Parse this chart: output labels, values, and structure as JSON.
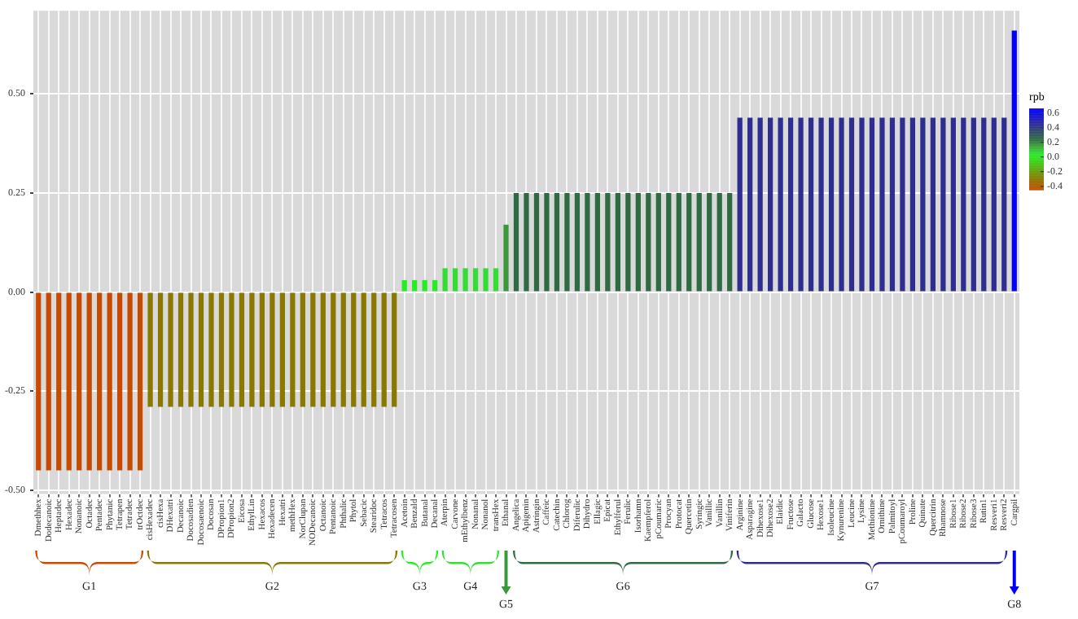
{
  "chart_data": {
    "type": "bar",
    "categories": [
      "Dmethhex",
      "Dodecanoic",
      "Heptadec",
      "Hexadec",
      "Nonanoic",
      "Octadec",
      "Pentadec",
      "Phytanic",
      "Tetrapen",
      "Tetradec",
      "trOctdec",
      "cisHexadec",
      "cisHexa",
      "DHexatri",
      "Decanoic",
      "Docosadien",
      "Docosaenoic",
      "Docosan",
      "DPropion1",
      "DPropion2",
      "Eicosa",
      "EthylLin",
      "Hexacos",
      "Hexadecen",
      "Hexatri",
      "methHex",
      "NorClupan",
      "NODecanoic",
      "Octanoic",
      "Pentanoic",
      "Phthalic",
      "Phytol",
      "Sebacic",
      "Stearidoc",
      "Tetracos",
      "Tetracosen",
      "Acetoin",
      "Benzald",
      "Butanal",
      "Decanal",
      "Aterpin",
      "Carvone",
      "mEthylbenz",
      "Nonanal",
      "Nonanol",
      "transHex",
      "Ethanal",
      "Angelica",
      "Apigenin",
      "Astringin",
      "Caffeic",
      "Catechin",
      "Chlorog",
      "Diferulic",
      "Dihydro",
      "Ellagic",
      "Epicat",
      "Ethylferul",
      "Ferulic",
      "Isorhamn",
      "Kaempferol",
      "pCoumaric",
      "Procyan",
      "Protocat",
      "Quercetin",
      "Syringic",
      "Vanillic",
      "Vanillin",
      "Viniferin",
      "Arginine",
      "Asparagine",
      "Dihexose1",
      "Dihexose2",
      "Elaidic",
      "Fructose",
      "Galacto",
      "Glucose",
      "Hexose1",
      "Isoleucine",
      "Kynurenine",
      "Leucine",
      "Lysine",
      "Methionine",
      "Ornithine",
      "Palmitoyl",
      "pCoumaroyl",
      "Proline",
      "Quinate",
      "Quercitrin",
      "Rhamnose",
      "Ribose1",
      "Ribose2",
      "Ribose3",
      "Rutin1",
      "Resveri1",
      "Resveri2",
      "Cargpil"
    ],
    "values": [
      -0.45,
      -0.45,
      -0.45,
      -0.45,
      -0.45,
      -0.45,
      -0.45,
      -0.45,
      -0.45,
      -0.45,
      -0.45,
      -0.29,
      -0.29,
      -0.29,
      -0.29,
      -0.29,
      -0.29,
      -0.29,
      -0.29,
      -0.29,
      -0.29,
      -0.29,
      -0.29,
      -0.29,
      -0.29,
      -0.29,
      -0.29,
      -0.29,
      -0.29,
      -0.29,
      -0.29,
      -0.29,
      -0.29,
      -0.29,
      -0.29,
      -0.29,
      0.03,
      0.03,
      0.03,
      0.03,
      0.06,
      0.06,
      0.06,
      0.06,
      0.06,
      0.06,
      0.17,
      0.25,
      0.25,
      0.25,
      0.25,
      0.25,
      0.25,
      0.25,
      0.25,
      0.25,
      0.25,
      0.25,
      0.25,
      0.25,
      0.25,
      0.25,
      0.25,
      0.25,
      0.25,
      0.25,
      0.25,
      0.25,
      0.25,
      0.44,
      0.44,
      0.44,
      0.44,
      0.44,
      0.44,
      0.44,
      0.44,
      0.44,
      0.44,
      0.44,
      0.44,
      0.44,
      0.44,
      0.44,
      0.44,
      0.44,
      0.44,
      0.44,
      0.44,
      0.44,
      0.44,
      0.44,
      0.44,
      0.44,
      0.44,
      0.44,
      0.66
    ],
    "colors": [
      "#c84a00",
      "#c84a00",
      "#c84a00",
      "#c84a00",
      "#c84a00",
      "#c84a00",
      "#c84a00",
      "#c84a00",
      "#c84a00",
      "#c84a00",
      "#c84a00",
      "#8a7800",
      "#8a7800",
      "#8a7800",
      "#8a7800",
      "#8a7800",
      "#8a7800",
      "#8a7800",
      "#8a7800",
      "#8a7800",
      "#8a7800",
      "#8a7800",
      "#8a7800",
      "#8a7800",
      "#8a7800",
      "#8a7800",
      "#8a7800",
      "#8a7800",
      "#8a7800",
      "#8a7800",
      "#8a7800",
      "#8a7800",
      "#8a7800",
      "#8a7800",
      "#8a7800",
      "#8a7800",
      "#22ee22",
      "#22ee22",
      "#22ee22",
      "#22ee22",
      "#33dd33",
      "#33dd33",
      "#33dd33",
      "#33dd33",
      "#33dd33",
      "#33dd33",
      "#3a9a3a",
      "#2e6b42",
      "#2e6b42",
      "#2e6b42",
      "#2e6b42",
      "#2e6b42",
      "#2e6b42",
      "#2e6b42",
      "#2e6b42",
      "#2e6b42",
      "#2e6b42",
      "#2e6b42",
      "#2e6b42",
      "#2e6b42",
      "#2e6b42",
      "#2e6b42",
      "#2e6b42",
      "#2e6b42",
      "#2e6b42",
      "#2e6b42",
      "#2e6b42",
      "#2e6b42",
      "#2e6b42",
      "#2e2e90",
      "#2e2e90",
      "#2e2e90",
      "#2e2e90",
      "#2e2e90",
      "#2e2e90",
      "#2e2e90",
      "#2e2e90",
      "#2e2e90",
      "#2e2e90",
      "#2e2e90",
      "#2e2e90",
      "#2e2e90",
      "#2e2e90",
      "#2e2e90",
      "#2e2e90",
      "#2e2e90",
      "#2e2e90",
      "#2e2e90",
      "#2e2e90",
      "#2e2e90",
      "#2e2e90",
      "#2e2e90",
      "#2e2e90",
      "#2e2e90",
      "#2e2e90",
      "#2e2e90",
      "#0000ff"
    ],
    "ylim": [
      -0.51,
      0.71
    ],
    "yticks": [
      {
        "value": -0.5,
        "label": "-0.50"
      },
      {
        "value": -0.25,
        "label": "-0.25"
      },
      {
        "value": 0,
        "label": "0.00"
      },
      {
        "value": 0.25,
        "label": "0.25"
      },
      {
        "value": 0.5,
        "label": "0.50"
      }
    ],
    "grid": true,
    "legend": false,
    "clabel": "rpb",
    "clim": [
      -0.45,
      0.66
    ],
    "cticks": [
      -0.4,
      -0.2,
      {
        "value": 0,
        "label": "0.0"
      },
      0.2,
      0.4,
      0.6
    ],
    "annotations": [
      "G1",
      "G2",
      "G3",
      "G4",
      "G5",
      "G6",
      "G7",
      "G8"
    ]
  }
}
